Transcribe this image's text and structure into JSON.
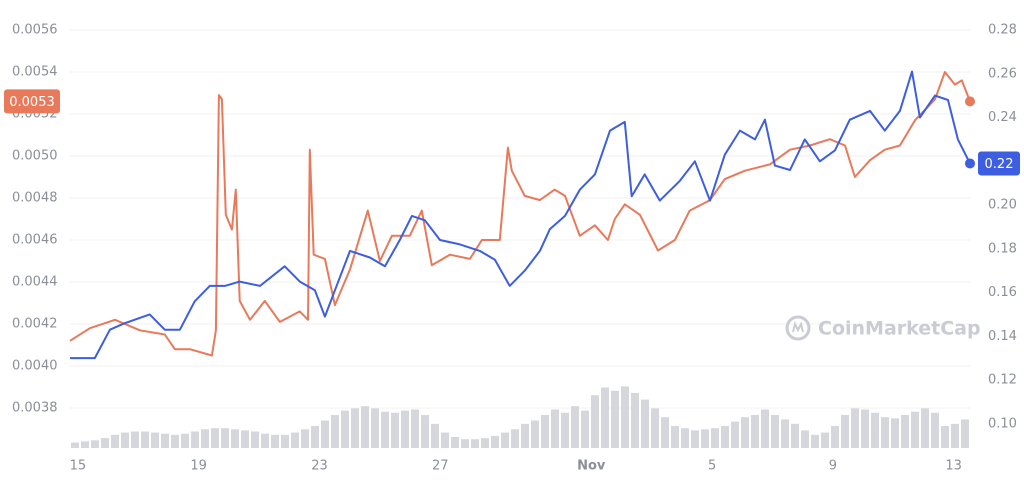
{
  "chart_data": {
    "type": "line",
    "watermark": "CoinMarketCap",
    "xlim": [
      -0.26,
      29.54
    ],
    "xticks": [
      {
        "value": 0,
        "label": "15"
      },
      {
        "value": 4,
        "label": "19"
      },
      {
        "value": 8,
        "label": "23"
      },
      {
        "value": 12,
        "label": "27"
      },
      {
        "value": 17,
        "label": "Nov"
      },
      {
        "value": 21,
        "label": "5"
      },
      {
        "value": 25,
        "label": "9"
      },
      {
        "value": 29,
        "label": "13"
      }
    ],
    "ylim": [
      0.0036,
      0.0056
    ],
    "yticks": [
      0.0038,
      {
        "value": 0.004,
        "label": "0.0040"
      },
      0.0042,
      0.0044,
      0.0046,
      0.0048,
      {
        "value": 0.005,
        "label": "0.0050"
      },
      0.0052,
      0.0054,
      0.0056
    ],
    "y2lim": [
      0.088,
      0.28
    ],
    "y2ticks": [
      {
        "value": 0.1,
        "label": "0.10"
      },
      0.12,
      0.14,
      0.16,
      0.18,
      {
        "value": 0.2,
        "label": "0.20"
      },
      0.22,
      0.24,
      0.26,
      0.28
    ],
    "grid": true,
    "series": [
      {
        "color": "#e8795b",
        "last_label": "0.0053",
        "x": [
          -0.26,
          0.4,
          1.23,
          2.05,
          2.88,
          3.21,
          3.71,
          4.44,
          4.57,
          4.67,
          4.77,
          4.9,
          5.1,
          5.23,
          5.36,
          5.7,
          6.19,
          6.69,
          7.35,
          7.62,
          7.68,
          7.81,
          8.18,
          8.51,
          9.01,
          9.6,
          10.0,
          10.4,
          10.99,
          11.39,
          11.72,
          12.32,
          12.98,
          13.38,
          13.97,
          14.24,
          14.37,
          14.8,
          15.3,
          15.79,
          16.13,
          16.62,
          17.12,
          17.55,
          17.78,
          18.11,
          18.61,
          19.21,
          19.77,
          20.26,
          20.93,
          21.42,
          22.09,
          22.91,
          23.58,
          24.24,
          24.9,
          25.4,
          25.73,
          26.23,
          26.72,
          27.22,
          27.72,
          28.05,
          28.38,
          28.71,
          29.04,
          29.27,
          29.54
        ],
        "values": [
          0.00412,
          0.00418,
          0.00422,
          0.00417,
          0.00415,
          0.00408,
          0.00408,
          0.00405,
          0.00417,
          0.00529,
          0.00527,
          0.00472,
          0.00465,
          0.00484,
          0.00431,
          0.00422,
          0.00431,
          0.00421,
          0.00426,
          0.00422,
          0.00503,
          0.00453,
          0.00451,
          0.00429,
          0.00446,
          0.00474,
          0.0045,
          0.00462,
          0.00462,
          0.00474,
          0.00448,
          0.00453,
          0.00451,
          0.0046,
          0.0046,
          0.00504,
          0.00493,
          0.00481,
          0.00479,
          0.00484,
          0.00481,
          0.00462,
          0.00467,
          0.0046,
          0.0047,
          0.00477,
          0.00472,
          0.00455,
          0.0046,
          0.00474,
          0.00479,
          0.00489,
          0.00493,
          0.00496,
          0.00503,
          0.00505,
          0.00508,
          0.00505,
          0.0049,
          0.00498,
          0.00503,
          0.00505,
          0.00517,
          0.00522,
          0.00527,
          0.0054,
          0.00534,
          0.00536,
          0.00526
        ]
      },
      {
        "color": "#3d5ee1",
        "axis": "y2",
        "last_label": "0.22",
        "x": [
          -0.26,
          0.56,
          1.06,
          1.56,
          2.38,
          2.88,
          3.38,
          3.87,
          4.37,
          4.87,
          5.36,
          6.03,
          6.85,
          7.35,
          7.85,
          8.18,
          8.51,
          9.01,
          9.67,
          10.17,
          10.66,
          11.06,
          11.49,
          11.99,
          12.65,
          13.31,
          13.81,
          14.3,
          14.8,
          15.3,
          15.63,
          16.13,
          16.62,
          17.12,
          17.62,
          18.11,
          18.34,
          18.77,
          19.27,
          19.93,
          20.43,
          20.93,
          21.42,
          21.92,
          22.42,
          22.75,
          23.08,
          23.58,
          24.07,
          24.57,
          25.07,
          25.56,
          26.23,
          26.72,
          27.22,
          27.62,
          27.88,
          28.38,
          28.81,
          29.14,
          29.54
        ],
        "values": [
          0.13,
          0.13,
          0.143,
          0.146,
          0.15,
          0.143,
          0.143,
          0.156,
          0.163,
          0.163,
          0.165,
          0.163,
          0.172,
          0.165,
          0.161,
          0.149,
          0.161,
          0.179,
          0.176,
          0.172,
          0.184,
          0.195,
          0.193,
          0.184,
          0.182,
          0.179,
          0.175,
          0.163,
          0.17,
          0.179,
          0.189,
          0.195,
          0.207,
          0.214,
          0.234,
          0.238,
          0.204,
          0.214,
          0.202,
          0.211,
          0.22,
          0.202,
          0.223,
          0.234,
          0.23,
          0.239,
          0.218,
          0.216,
          0.23,
          0.22,
          0.225,
          0.239,
          0.243,
          0.234,
          0.243,
          0.261,
          0.24,
          0.25,
          0.248,
          0.23,
          0.219
        ]
      }
    ],
    "volume": {
      "color": "#d5d7dc",
      "lim": [
        0,
        100
      ],
      "values": [
        5,
        6,
        7,
        9,
        12,
        14,
        15,
        15,
        14,
        13,
        12,
        13,
        15,
        17,
        18,
        18,
        17,
        16,
        15,
        13,
        12,
        12,
        14,
        17,
        20,
        25,
        30,
        34,
        36,
        38,
        36,
        33,
        32,
        34,
        35,
        30,
        22,
        14,
        10,
        8,
        8,
        9,
        11,
        14,
        17,
        22,
        25,
        30,
        35,
        32,
        38,
        34,
        48,
        55,
        52,
        56,
        50,
        44,
        36,
        28,
        20,
        18,
        16,
        17,
        18,
        20,
        24,
        28,
        30,
        35,
        30,
        26,
        22,
        16,
        12,
        14,
        20,
        30,
        36,
        35,
        32,
        28,
        27,
        30,
        33,
        36,
        32,
        20,
        22,
        26
      ]
    }
  }
}
